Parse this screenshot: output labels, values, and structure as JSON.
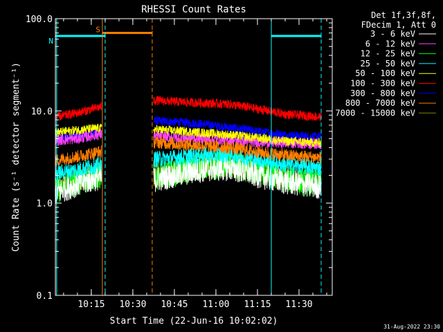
{
  "chart_data": {
    "type": "line",
    "title": "RHESSI Count Rates",
    "xlabel": "Start Time (22-Jun-16 10:02:02)",
    "ylabel": "Count Rate (s⁻¹ detector segment⁻¹)",
    "yscale": "log",
    "ylim": [
      0.1,
      100.0
    ],
    "xlim": [
      "10:02:02",
      "11:42:00"
    ],
    "y_ticks": [
      "0.1",
      "1.0",
      "10.0",
      "100.0"
    ],
    "x_ticks": [
      "10:15",
      "10:30",
      "10:45",
      "11:00",
      "11:15",
      "11:30"
    ],
    "grid": false,
    "legend_position": "right",
    "legend_header": [
      "Det 1f,3f,8f,",
      "FDecim 1, Att 0"
    ],
    "timestamp": "31-Aug-2022 23:30",
    "data_gap": [
      "10:19:00",
      "10:37:00"
    ],
    "series": [
      {
        "name": "3 - 6 keV",
        "color": "#ffffff",
        "x": [
          "10:02",
          "10:10",
          "10:18",
          "10:38",
          "10:45",
          "10:55",
          "11:05",
          "11:15",
          "11:25",
          "11:38"
        ],
        "y": [
          1.3,
          1.6,
          1.9,
          1.8,
          2.0,
          2.3,
          2.4,
          2.0,
          1.7,
          1.5
        ]
      },
      {
        "name": "6 - 12 keV",
        "color": "#ff40ff",
        "x": [
          "10:02",
          "10:10",
          "10:18",
          "10:38",
          "10:45",
          "10:55",
          "11:05",
          "11:15",
          "11:25",
          "11:38"
        ],
        "y": [
          4.8,
          5.0,
          5.6,
          5.3,
          5.2,
          5.0,
          4.8,
          4.6,
          4.5,
          4.4
        ]
      },
      {
        "name": "12 - 25 keV",
        "color": "#00ff00",
        "x": [
          "10:02",
          "10:10",
          "10:18",
          "10:38",
          "10:45",
          "10:55",
          "11:05",
          "11:15",
          "11:25",
          "11:38"
        ],
        "y": [
          1.4,
          1.7,
          2.0,
          1.9,
          2.1,
          2.5,
          2.6,
          2.2,
          1.8,
          1.6
        ]
      },
      {
        "name": "25 - 50 keV",
        "color": "#00ffff",
        "x": [
          "10:02",
          "10:10",
          "10:18",
          "10:38",
          "10:45",
          "10:55",
          "11:05",
          "11:15",
          "11:25",
          "11:38"
        ],
        "y": [
          2.1,
          2.3,
          2.6,
          3.0,
          3.1,
          3.3,
          3.4,
          3.0,
          2.6,
          2.4
        ]
      },
      {
        "name": "50 - 100 keV",
        "color": "#ffff00",
        "x": [
          "10:02",
          "10:10",
          "10:18",
          "10:38",
          "10:45",
          "10:55",
          "11:05",
          "11:15",
          "11:25",
          "11:38"
        ],
        "y": [
          5.8,
          6.2,
          6.5,
          6.3,
          6.1,
          5.8,
          5.5,
          5.1,
          4.7,
          4.5
        ]
      },
      {
        "name": "100 - 300 keV",
        "color": "#ff0000",
        "x": [
          "10:02",
          "10:10",
          "10:18",
          "10:38",
          "10:45",
          "10:55",
          "11:05",
          "11:15",
          "11:25",
          "11:38"
        ],
        "y": [
          8.5,
          9.5,
          11.0,
          13.0,
          12.6,
          12.2,
          11.8,
          10.5,
          9.2,
          8.6
        ]
      },
      {
        "name": "300 - 800 keV",
        "color": "#0000ff",
        "x": [
          "10:02",
          "10:10",
          "10:18",
          "10:38",
          "10:45",
          "10:55",
          "11:05",
          "11:15",
          "11:25",
          "11:38"
        ],
        "y": [
          5.0,
          5.4,
          5.9,
          7.8,
          7.6,
          7.2,
          6.6,
          6.0,
          5.5,
          5.2
        ]
      },
      {
        "name": "800 - 7000 keV",
        "color": "#ff8000",
        "x": [
          "10:02",
          "10:10",
          "10:18",
          "10:38",
          "10:45",
          "10:55",
          "11:05",
          "11:15",
          "11:25",
          "11:38"
        ],
        "y": [
          2.9,
          3.2,
          3.6,
          4.6,
          4.4,
          4.2,
          4.0,
          3.6,
          3.3,
          3.1
        ]
      },
      {
        "name": "7000 - 15000 keV",
        "color": "#808000",
        "x": [
          "10:02",
          "10:10",
          "10:18",
          "10:38",
          "10:45",
          "10:55",
          "11:05",
          "11:15",
          "11:25",
          "11:38"
        ],
        "y": [
          1.5,
          1.8,
          2.1,
          2.0,
          2.2,
          2.5,
          2.6,
          2.2,
          1.9,
          1.7
        ]
      }
    ],
    "markers": [
      {
        "label": "S",
        "color": "#ff8000",
        "type": "segment",
        "x_start": "10:19:00",
        "x_end": "10:37:00",
        "y": 70
      },
      {
        "label": "N",
        "color": "#00ffff",
        "type": "segment",
        "x_start": "10:02:02",
        "x_end": "10:20:00",
        "y": 65
      },
      {
        "label": "",
        "color": "#00ffff",
        "type": "segment",
        "x_start": "11:20:00",
        "x_end": "11:38:00",
        "y": 65
      },
      {
        "label": "",
        "color": "#00ffff",
        "type": "vline_solid",
        "x": "10:02:30"
      },
      {
        "label": "",
        "color": "#ff8000",
        "type": "vline_solid",
        "x": "10:19:00"
      },
      {
        "label": "",
        "color": "#00ffff",
        "type": "vline_dashed",
        "x": "10:20:00"
      },
      {
        "label": "",
        "color": "#ff8000",
        "type": "vline_dashed",
        "x": "10:37:00"
      },
      {
        "label": "",
        "color": "#00ffff",
        "type": "vline_solid",
        "x": "11:20:00"
      },
      {
        "label": "",
        "color": "#00ffff",
        "type": "vline_dashed",
        "x": "11:38:00"
      }
    ]
  }
}
